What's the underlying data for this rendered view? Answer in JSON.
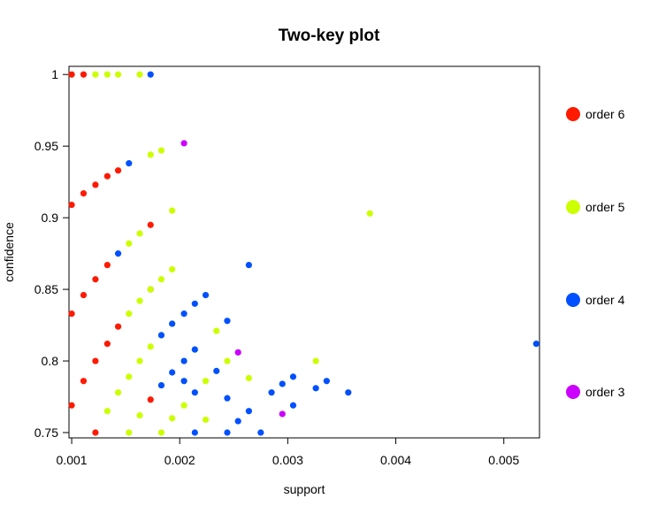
{
  "chart_data": {
    "type": "scatter",
    "title": "Two-key plot",
    "xlabel": "support",
    "ylabel": "confidence",
    "xlim": [
      0.000975,
      0.00533
    ],
    "ylim": [
      0.7463,
      1.0057
    ],
    "x_ticks": [
      "0.001",
      "0.002",
      "0.003",
      "0.004",
      "0.005"
    ],
    "y_ticks": [
      "0.75",
      "0.8",
      "0.85",
      "0.9",
      "0.95",
      "1"
    ],
    "x_tick_values": [
      0.001,
      0.002,
      0.003,
      0.004,
      0.005
    ],
    "y_tick_values": [
      0.75,
      0.8,
      0.85,
      0.9,
      0.95,
      1.0
    ],
    "legend_position": "right",
    "series": [
      {
        "name": "order 6",
        "color": "#ff1a00",
        "points": [
          [
            0.001,
            1.0
          ],
          [
            0.00111,
            1.0
          ],
          [
            0.001,
            0.909
          ],
          [
            0.00111,
            0.917
          ],
          [
            0.00122,
            0.923
          ],
          [
            0.00133,
            0.929
          ],
          [
            0.00143,
            0.933
          ],
          [
            0.001,
            0.833
          ],
          [
            0.00111,
            0.846
          ],
          [
            0.00122,
            0.857
          ],
          [
            0.00133,
            0.867
          ],
          [
            0.00173,
            0.895
          ],
          [
            0.001,
            0.769
          ],
          [
            0.00111,
            0.786
          ],
          [
            0.00122,
            0.8
          ],
          [
            0.00133,
            0.812
          ],
          [
            0.00143,
            0.824
          ],
          [
            0.00173,
            0.85
          ],
          [
            0.00122,
            0.75
          ],
          [
            0.00173,
            0.773
          ]
        ]
      },
      {
        "name": "order 5",
        "color": "#ccff00",
        "points": [
          [
            0.00122,
            1.0
          ],
          [
            0.00133,
            1.0
          ],
          [
            0.00143,
            1.0
          ],
          [
            0.00163,
            1.0
          ],
          [
            0.00173,
            0.944
          ],
          [
            0.00183,
            0.947
          ],
          [
            0.00193,
            0.905
          ],
          [
            0.00376,
            0.903
          ],
          [
            0.00153,
            0.882
          ],
          [
            0.00163,
            0.889
          ],
          [
            0.00153,
            0.833
          ],
          [
            0.00163,
            0.842
          ],
          [
            0.00173,
            0.85
          ],
          [
            0.00183,
            0.857
          ],
          [
            0.00193,
            0.864
          ],
          [
            0.00143,
            0.778
          ],
          [
            0.00153,
            0.789
          ],
          [
            0.00163,
            0.8
          ],
          [
            0.00173,
            0.81
          ],
          [
            0.00183,
            0.818
          ],
          [
            0.00193,
            0.826
          ],
          [
            0.00234,
            0.821
          ],
          [
            0.00133,
            0.765
          ],
          [
            0.00163,
            0.762
          ],
          [
            0.00183,
            0.783
          ],
          [
            0.00193,
            0.76
          ],
          [
            0.00204,
            0.769
          ],
          [
            0.00204,
            0.8
          ],
          [
            0.00214,
            0.808
          ],
          [
            0.00224,
            0.786
          ],
          [
            0.00244,
            0.8
          ],
          [
            0.00264,
            0.788
          ],
          [
            0.00224,
            0.759
          ],
          [
            0.00153,
            0.75
          ],
          [
            0.00183,
            0.75
          ],
          [
            0.00326,
            0.8
          ]
        ]
      },
      {
        "name": "order 4",
        "color": "#0050ff",
        "points": [
          [
            0.00173,
            1.0
          ],
          [
            0.00153,
            0.938
          ],
          [
            0.00143,
            0.875
          ],
          [
            0.00264,
            0.867
          ],
          [
            0.00224,
            0.846
          ],
          [
            0.00214,
            0.84
          ],
          [
            0.00204,
            0.833
          ],
          [
            0.00193,
            0.826
          ],
          [
            0.00183,
            0.818
          ],
          [
            0.00244,
            0.828
          ],
          [
            0.00193,
            0.792
          ],
          [
            0.00234,
            0.793
          ],
          [
            0.00204,
            0.8
          ],
          [
            0.00214,
            0.808
          ],
          [
            0.00183,
            0.783
          ],
          [
            0.00204,
            0.786
          ],
          [
            0.00214,
            0.778
          ],
          [
            0.00244,
            0.774
          ],
          [
            0.00264,
            0.765
          ],
          [
            0.00214,
            0.75
          ],
          [
            0.00244,
            0.75
          ],
          [
            0.00254,
            0.758
          ],
          [
            0.00275,
            0.75
          ],
          [
            0.00285,
            0.778
          ],
          [
            0.00295,
            0.784
          ],
          [
            0.00305,
            0.789
          ],
          [
            0.00305,
            0.769
          ],
          [
            0.00326,
            0.781
          ],
          [
            0.00336,
            0.786
          ],
          [
            0.00356,
            0.778
          ],
          [
            0.0053,
            0.812
          ]
        ]
      },
      {
        "name": "order 3",
        "color": "#cc00ff",
        "points": [
          [
            0.00204,
            0.952
          ],
          [
            0.00254,
            0.806
          ],
          [
            0.00295,
            0.763
          ]
        ]
      }
    ]
  }
}
